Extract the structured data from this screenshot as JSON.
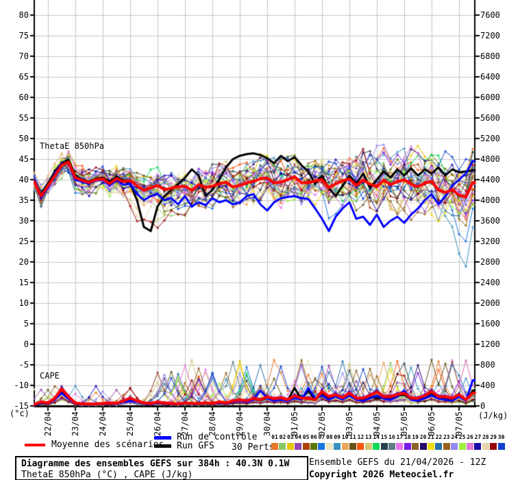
{
  "page": {
    "background": "#ffffff"
  },
  "chart_data": {
    "type": "line",
    "labels": {
      "thetae": "ThetaE 850hPa",
      "cape": "CAPE"
    },
    "x": {
      "step_hours": 6,
      "total_hours": 384,
      "day_tick_labels": [
        "22/04",
        "23/04",
        "24/04",
        "25/04",
        "26/04",
        "27/04",
        "28/04",
        "29/04",
        "30/04",
        "01/05",
        "02/05",
        "03/05",
        "04/05",
        "05/05",
        "06/05",
        "07/05"
      ]
    },
    "y_left": {
      "unit": "(°c)",
      "min": -15,
      "max": 80,
      "step": 5,
      "ticks": [
        80,
        75,
        70,
        65,
        60,
        55,
        50,
        45,
        40,
        35,
        30,
        25,
        20,
        15,
        10,
        5,
        0,
        -5,
        -10,
        -15
      ]
    },
    "y_right": {
      "unit": "(J/kg)",
      "min": 0,
      "max": 7600,
      "step": 400,
      "ticks": [
        7600,
        7200,
        6800,
        6400,
        6000,
        5600,
        5200,
        4800,
        4400,
        4000,
        3600,
        3200,
        2800,
        2400,
        2000,
        1600,
        1200,
        800,
        400,
        0
      ]
    },
    "grid": {
      "color": "#c4c4c4",
      "axis_color": "#000000"
    },
    "series": {
      "mean": {
        "label": "Moyenne des scénarios",
        "color": "#ff0000",
        "thetae": [
          39.5,
          36.0,
          38.5,
          41.0,
          43.5,
          44.3,
          40.5,
          39.8,
          39.3,
          40.0,
          40.2,
          39.0,
          40.3,
          39.5,
          39.8,
          38.5,
          37.4,
          38.0,
          38.6,
          37.6,
          37.9,
          38.3,
          38.4,
          37.4,
          38.8,
          38.1,
          38.4,
          39.0,
          39.4,
          38.2,
          38.6,
          39.2,
          39.6,
          40.2,
          40.4,
          39.2,
          39.4,
          40.0,
          40.7,
          39.3,
          39.2,
          39.7,
          40.0,
          38.1,
          39.0,
          39.7,
          40.2,
          38.6,
          39.9,
          38.9,
          38.3,
          39.9,
          38.8,
          39.5,
          40.0,
          38.9,
          38.3,
          39.1,
          39.6,
          37.5,
          36.9,
          37.6,
          36.2,
          35.8,
          39.3
        ],
        "cape": [
          30,
          80,
          60,
          150,
          330,
          180,
          60,
          40,
          40,
          40,
          50,
          60,
          50,
          100,
          150,
          100,
          60,
          50,
          80,
          60,
          50,
          40,
          60,
          50,
          50,
          60,
          50,
          80,
          60,
          100,
          120,
          100,
          150,
          120,
          180,
          140,
          160,
          120,
          200,
          150,
          150,
          120,
          280,
          180,
          220,
          160,
          250,
          150,
          150,
          200,
          270,
          180,
          180,
          220,
          250,
          150,
          150,
          200,
          280,
          180,
          180,
          150,
          220,
          120,
          250
        ]
      },
      "control": {
        "label": "Run de contrôle",
        "color": "#0000ff",
        "thetae": [
          39.8,
          35.5,
          38.0,
          41.5,
          43.8,
          44.0,
          40.0,
          39.5,
          39.0,
          39.8,
          40.0,
          38.5,
          40.0,
          38.8,
          39.0,
          36.5,
          35.0,
          36.0,
          36.5,
          35.0,
          35.5,
          34.0,
          36.0,
          33.5,
          34.5,
          33.8,
          35.5,
          34.5,
          35.0,
          34.0,
          34.5,
          36.0,
          36.5,
          34.0,
          32.5,
          34.5,
          35.5,
          35.8,
          36.0,
          35.5,
          35.3,
          33.0,
          30.5,
          27.5,
          31.0,
          33.0,
          34.5,
          30.5,
          31.0,
          29.0,
          31.5,
          28.5,
          30.0,
          31.0,
          29.5,
          31.5,
          33.0,
          35.0,
          36.5,
          34.0,
          36.0,
          38.5,
          40.0,
          41.5,
          44.5
        ],
        "cape": [
          20,
          60,
          50,
          120,
          250,
          140,
          50,
          30,
          30,
          30,
          40,
          50,
          40,
          80,
          100,
          80,
          50,
          40,
          60,
          50,
          40,
          30,
          50,
          40,
          40,
          50,
          40,
          60,
          50,
          80,
          100,
          80,
          120,
          300,
          150,
          100,
          120,
          90,
          150,
          120,
          350,
          150,
          200,
          120,
          180,
          120,
          200,
          120,
          100,
          150,
          200,
          140,
          120,
          180,
          300,
          120,
          100,
          150,
          200,
          140,
          120,
          100,
          180,
          100,
          500
        ]
      },
      "gfs": {
        "label": "Run GFS",
        "color": "#000000",
        "thetae": [
          39.3,
          36.5,
          39.0,
          42.0,
          44.0,
          44.8,
          41.0,
          40.0,
          39.5,
          40.2,
          40.5,
          39.5,
          40.8,
          39.8,
          39.0,
          35.0,
          28.5,
          27.5,
          33.5,
          36.0,
          37.5,
          39.0,
          40.5,
          42.5,
          41.0,
          36.0,
          37.5,
          40.0,
          43.0,
          45.0,
          45.8,
          46.2,
          46.4,
          46.0,
          45.2,
          44.0,
          45.8,
          44.5,
          45.5,
          43.5,
          42.0,
          39.0,
          41.0,
          38.0,
          36.0,
          38.5,
          41.0,
          39.0,
          41.5,
          38.0,
          40.0,
          42.0,
          40.5,
          42.5,
          41.0,
          42.8,
          41.0,
          42.5,
          41.5,
          43.0,
          41.0,
          42.5,
          41.8,
          42.0,
          42.3
        ],
        "cape": [
          25,
          70,
          50,
          130,
          280,
          150,
          50,
          30,
          30,
          35,
          45,
          55,
          45,
          90,
          120,
          90,
          55,
          45,
          70,
          55,
          45,
          35,
          55,
          45,
          45,
          55,
          45,
          70,
          55,
          90,
          110,
          90,
          130,
          110,
          160,
          130,
          140,
          110,
          350,
          130,
          300,
          110,
          250,
          160,
          200,
          140,
          220,
          130,
          130,
          180,
          150,
          160,
          160,
          200,
          220,
          130,
          130,
          180,
          250,
          160,
          160,
          130,
          200,
          110,
          300
        ]
      },
      "perturbations": {
        "label": "30 Perts.",
        "count": 30,
        "numbers": [
          "01",
          "02",
          "03",
          "04",
          "05",
          "06",
          "07",
          "08",
          "09",
          "10",
          "11",
          "12",
          "13",
          "14",
          "15",
          "16",
          "17",
          "18",
          "19",
          "20",
          "21",
          "22",
          "23",
          "24",
          "25",
          "26",
          "27",
          "28",
          "29",
          "30"
        ],
        "colors": [
          "#e87828",
          "#88c868",
          "#e8c408",
          "#9048b0",
          "#b04008",
          "#587808",
          "#1874e0",
          "#ece8c0",
          "#3890c0",
          "#e8a858",
          "#685418",
          "#f85410",
          "#d4c474",
          "#10d858",
          "#28404c",
          "#5c7c84",
          "#e874f0",
          "#7818e8",
          "#8c6428",
          "#280868",
          "#f0dc10",
          "#2870a8",
          "#96621c",
          "#9488f0",
          "#a0f040",
          "#e078d8",
          "#1808a8",
          "#e8d4ac",
          "#980808",
          "#1040d0"
        ]
      }
    }
  },
  "legend": {
    "mean_label": "Moyenne des scénarios",
    "control_label": "Run de contrôle",
    "gfs_label": "Run GFS",
    "perts_label": "30 Perts."
  },
  "footer": {
    "title": "Diagramme des ensembles GEFS sur 384h : 40.3N 0.1W",
    "subtitle": "ThetaE 850hPa (°C) , CAPE (J/kg)",
    "run_info": "Ensemble GEFS du 21/04/2026 - 12Z",
    "copyright": "Copyright 2026 Meteociel.fr"
  }
}
